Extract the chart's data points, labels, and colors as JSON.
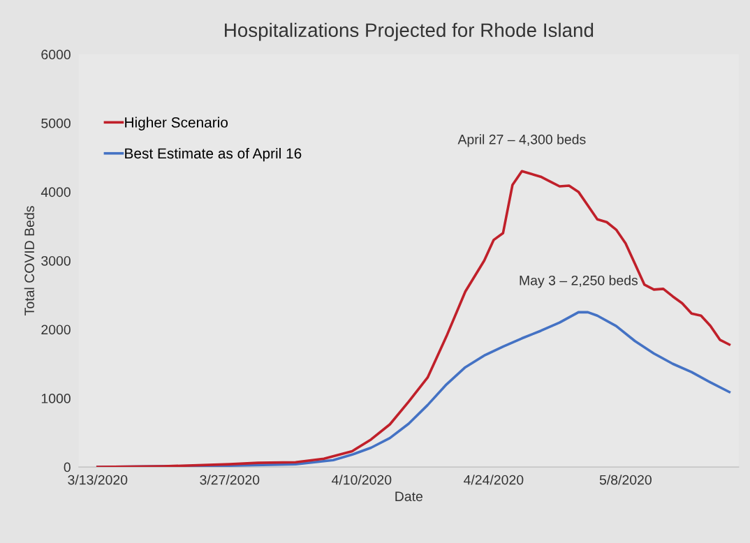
{
  "chart_data": {
    "type": "line",
    "title": "Hospitalizations Projected for Rhode Island",
    "xlabel": "Date",
    "ylabel": "Total COVID Beds",
    "xlim": [
      "2020-03-11",
      "2020-05-20"
    ],
    "ylim": [
      0,
      6000
    ],
    "yticks": [
      0,
      1000,
      2000,
      3000,
      4000,
      5000,
      6000
    ],
    "xticks": [
      {
        "value": "2020-03-13",
        "label": "3/13/2020"
      },
      {
        "value": "2020-03-27",
        "label": "3/27/2020"
      },
      {
        "value": "2020-04-10",
        "label": "4/10/2020"
      },
      {
        "value": "2020-04-24",
        "label": "4/24/2020"
      },
      {
        "value": "2020-05-08",
        "label": "5/8/2020"
      }
    ],
    "grid": false,
    "legend": "top left",
    "marker": "none",
    "line_style": "solid",
    "series": [
      {
        "name": "Higher Scenario",
        "color": "#c0202a",
        "x": [
          "2020-03-13",
          "2020-03-20",
          "2020-03-27",
          "2020-03-30",
          "2020-04-03",
          "2020-04-06",
          "2020-04-09",
          "2020-04-11",
          "2020-04-13",
          "2020-04-15",
          "2020-04-17",
          "2020-04-19",
          "2020-04-21",
          "2020-04-23",
          "2020-04-24",
          "2020-04-25",
          "2020-04-26",
          "2020-04-27",
          "2020-04-29",
          "2020-04-30",
          "2020-05-01",
          "2020-05-02",
          "2020-05-03",
          "2020-05-04",
          "2020-05-05",
          "2020-05-06",
          "2020-05-07",
          "2020-05-08",
          "2020-05-09",
          "2020-05-10",
          "2020-05-11",
          "2020-05-12",
          "2020-05-13",
          "2020-05-14",
          "2020-05-15",
          "2020-05-16",
          "2020-05-17",
          "2020-05-18",
          "2020-05-19"
        ],
        "values": [
          0,
          10,
          40,
          60,
          70,
          120,
          230,
          400,
          620,
          950,
          1300,
          1900,
          2550,
          3000,
          3300,
          3400,
          4100,
          4300,
          4220,
          4150,
          4080,
          4090,
          4000,
          3800,
          3600,
          3560,
          3450,
          3250,
          2950,
          2650,
          2580,
          2590,
          2480,
          2380,
          2230,
          2200,
          2050,
          1850,
          1780
        ]
      },
      {
        "name": "Best Estimate as of April 16",
        "color": "#4472c4",
        "x": [
          "2020-03-13",
          "2020-03-27",
          "2020-04-03",
          "2020-04-07",
          "2020-04-09",
          "2020-04-11",
          "2020-04-13",
          "2020-04-15",
          "2020-04-17",
          "2020-04-19",
          "2020-04-21",
          "2020-04-23",
          "2020-04-25",
          "2020-04-27",
          "2020-04-29",
          "2020-05-01",
          "2020-05-03",
          "2020-05-04",
          "2020-05-05",
          "2020-05-07",
          "2020-05-09",
          "2020-05-11",
          "2020-05-13",
          "2020-05-15",
          "2020-05-17",
          "2020-05-19"
        ],
        "values": [
          0,
          20,
          40,
          100,
          180,
          280,
          420,
          630,
          900,
          1200,
          1450,
          1620,
          1750,
          1870,
          1980,
          2100,
          2250,
          2250,
          2200,
          2050,
          1830,
          1650,
          1500,
          1380,
          1230,
          1090
        ]
      }
    ],
    "annotations": [
      {
        "text": "April 27 – 4,300 beds",
        "x": "2020-04-27",
        "y": 4300
      },
      {
        "text": "May 3 – 2,250 beds",
        "x": "2020-05-03",
        "y": 2250
      }
    ]
  }
}
